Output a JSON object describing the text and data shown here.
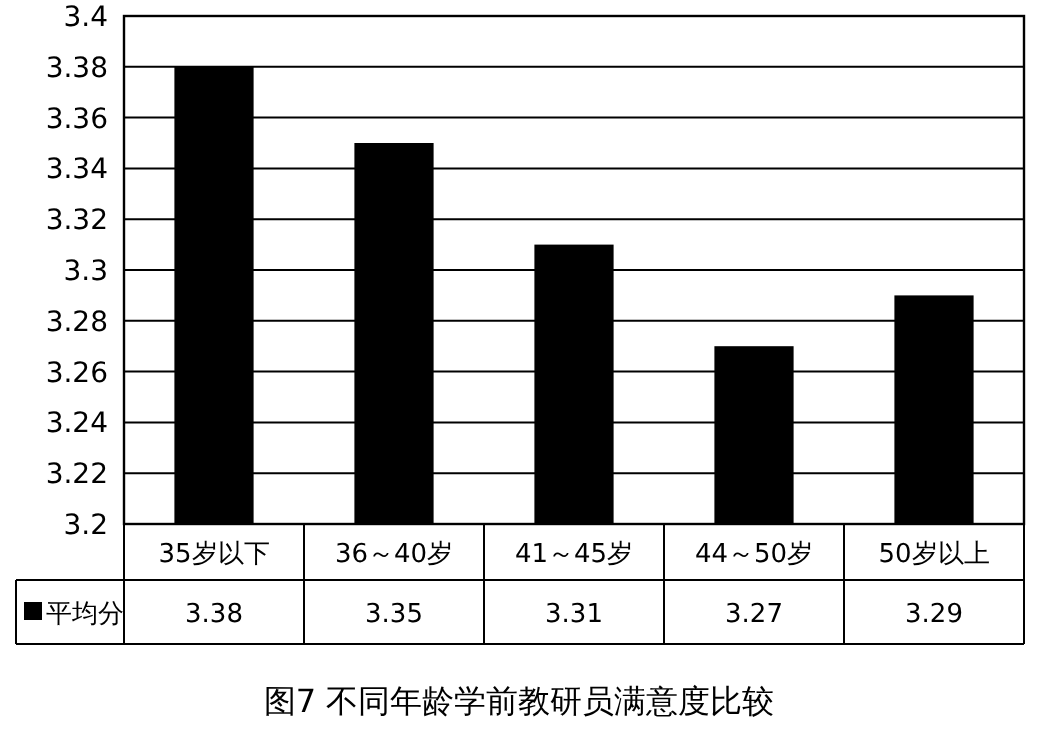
{
  "chart_data": {
    "type": "bar",
    "title": "图7 不同年龄学前教研员满意度比较",
    "categories": [
      "35岁以下",
      "36～40岁",
      "41～45岁",
      "44～50岁",
      "50岁以上"
    ],
    "series": [
      {
        "name": "平均分",
        "color": "#000000",
        "values": [
          3.38,
          3.35,
          3.31,
          3.27,
          3.29
        ]
      }
    ],
    "ylim": [
      3.2,
      3.4
    ],
    "yticks": [
      3.2,
      3.22,
      3.24,
      3.26,
      3.28,
      3.3,
      3.32,
      3.34,
      3.36,
      3.38,
      3.4
    ],
    "grid": "y",
    "data_labels": true,
    "legend": "bottom"
  }
}
